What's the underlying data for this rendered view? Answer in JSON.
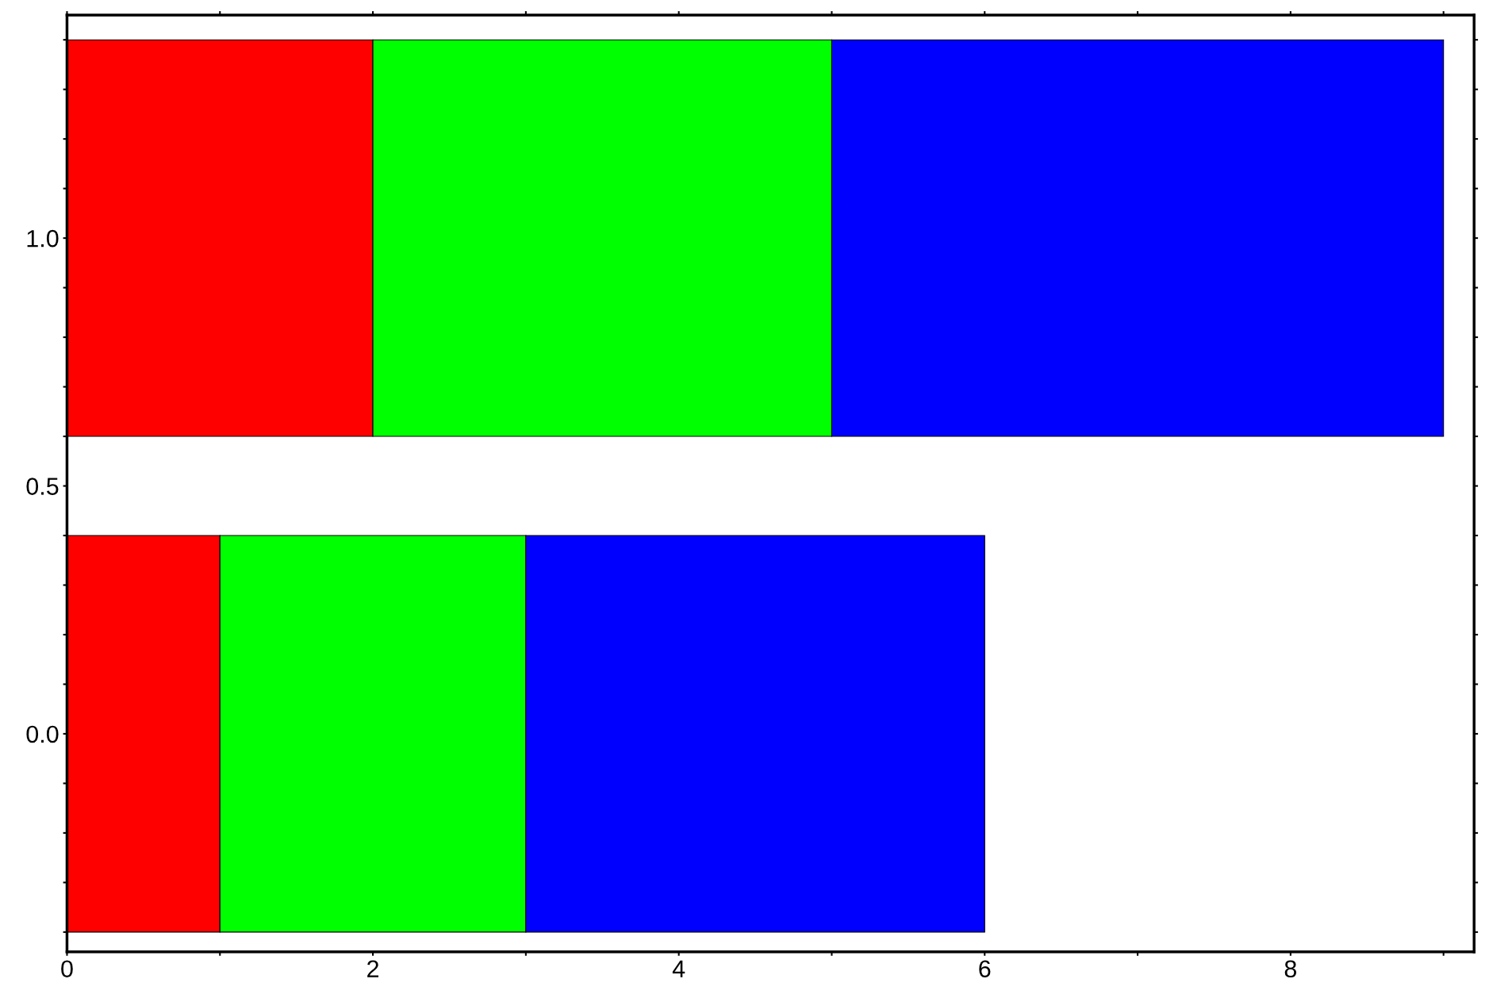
{
  "chart_data": {
    "type": "bar",
    "orientation": "horizontal",
    "stacked": true,
    "x": [
      0,
      1
    ],
    "series": [
      {
        "color": "#ff0000",
        "values": [
          1,
          2
        ]
      },
      {
        "color": "#00ff00",
        "values": [
          2,
          3
        ]
      },
      {
        "color": "#0000ff",
        "values": [
          3,
          4
        ]
      }
    ],
    "xlim": [
      0,
      9.2
    ],
    "xticks": [
      0,
      {
        "value": 1,
        "label": null
      },
      2,
      {
        "value": 3,
        "label": null
      },
      4,
      {
        "value": 5,
        "label": null
      },
      6,
      {
        "value": 7,
        "label": null
      },
      8,
      {
        "value": 9,
        "label": null
      }
    ],
    "ylim": [
      -0.44,
      1.45
    ],
    "yticks": [
      {
        "value": -0.4,
        "label": null
      },
      {
        "value": -0.3,
        "label": null
      },
      {
        "value": -0.2,
        "label": null
      },
      {
        "value": -0.1,
        "label": null
      },
      {
        "value": 0.0,
        "label": "0.0"
      },
      {
        "value": 0.1,
        "label": null
      },
      {
        "value": 0.2,
        "label": null
      },
      {
        "value": 0.3,
        "label": null
      },
      {
        "value": 0.4,
        "label": null
      },
      {
        "value": 0.5,
        "label": "0.5"
      },
      {
        "value": 0.6,
        "label": null
      },
      {
        "value": 0.7,
        "label": null
      },
      {
        "value": 0.8,
        "label": null
      },
      {
        "value": 0.9,
        "label": null
      },
      {
        "value": 1.0,
        "label": "1.0"
      },
      {
        "value": 1.1,
        "label": null
      },
      {
        "value": 1.2,
        "label": null
      },
      {
        "value": 1.3,
        "label": null
      },
      {
        "value": 1.4,
        "label": null
      }
    ],
    "grid": false,
    "legend": false
  }
}
